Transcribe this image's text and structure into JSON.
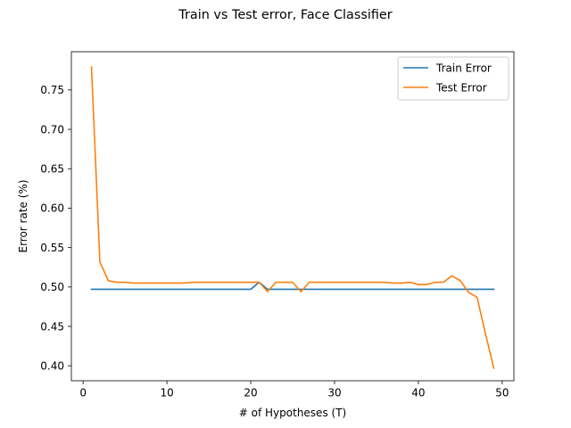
{
  "chart_data": {
    "type": "line",
    "title": "Train vs Test error, Face Classifier",
    "xlabel": "# of Hypotheses (T)",
    "ylabel": "Error rate (%)",
    "xlim": [
      -1.4,
      51.4
    ],
    "ylim": [
      0.381,
      0.7985
    ],
    "xticks": [
      0,
      10,
      20,
      30,
      40,
      50
    ],
    "yticks": [
      0.4,
      0.45,
      0.5,
      0.55,
      0.6,
      0.65,
      0.7,
      0.75
    ],
    "grid": false,
    "legend_position": "top-right",
    "x": [
      1,
      2,
      3,
      4,
      5,
      6,
      7,
      8,
      9,
      10,
      11,
      12,
      13,
      14,
      15,
      16,
      17,
      18,
      19,
      20,
      21,
      22,
      23,
      24,
      25,
      26,
      27,
      28,
      29,
      30,
      31,
      32,
      33,
      34,
      35,
      36,
      37,
      38,
      39,
      40,
      41,
      42,
      43,
      44,
      45,
      46,
      47,
      48,
      49
    ],
    "series": [
      {
        "name": "Train Error",
        "color": "#1f77b4",
        "values": [
          0.497,
          0.497,
          0.497,
          0.497,
          0.497,
          0.497,
          0.497,
          0.497,
          0.497,
          0.497,
          0.497,
          0.497,
          0.497,
          0.497,
          0.497,
          0.497,
          0.497,
          0.497,
          0.497,
          0.497,
          0.506,
          0.497,
          0.497,
          0.497,
          0.497,
          0.497,
          0.497,
          0.497,
          0.497,
          0.497,
          0.497,
          0.497,
          0.497,
          0.497,
          0.497,
          0.497,
          0.497,
          0.497,
          0.497,
          0.497,
          0.497,
          0.497,
          0.497,
          0.497,
          0.497,
          0.497,
          0.497,
          0.497,
          0.497
        ]
      },
      {
        "name": "Test Error",
        "color": "#ff7f0e",
        "values": [
          0.779,
          0.532,
          0.508,
          0.506,
          0.506,
          0.505,
          0.505,
          0.505,
          0.505,
          0.505,
          0.505,
          0.505,
          0.506,
          0.506,
          0.506,
          0.506,
          0.506,
          0.506,
          0.506,
          0.506,
          0.506,
          0.494,
          0.506,
          0.506,
          0.506,
          0.494,
          0.506,
          0.506,
          0.506,
          0.506,
          0.506,
          0.506,
          0.506,
          0.506,
          0.506,
          0.506,
          0.505,
          0.505,
          0.506,
          0.503,
          0.503,
          0.506,
          0.506,
          0.514,
          0.508,
          0.493,
          0.487,
          0.441,
          0.397
        ]
      }
    ]
  }
}
